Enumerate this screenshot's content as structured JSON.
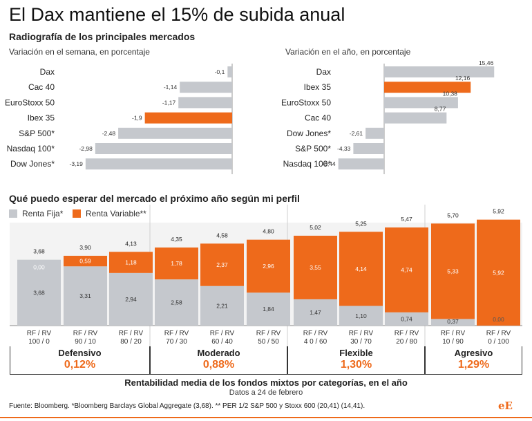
{
  "title": "El Dax mantiene el 15% de subida anual",
  "subtitle": "Radiografía de los principales mercados",
  "colors": {
    "orange": "#ee6a1b",
    "grey": "#c5c8cd",
    "text": "#1a1a1a"
  },
  "chart_data": [
    {
      "type": "bar",
      "orientation": "horizontal",
      "title": "Variación en el semana, en porcentaje",
      "categories": [
        "Dax",
        "Cac 40",
        "EuroStoxx 50",
        "Ibex 35",
        "S&P 500*",
        "Nasdaq 100*",
        "Dow Jones*"
      ],
      "values": [
        -0.1,
        -1.14,
        -1.17,
        -1.9,
        -2.48,
        -2.98,
        -3.19
      ],
      "labels": [
        "-0,1",
        "-1,14",
        "-1,17",
        "-1,9",
        "-2,48",
        "-2,98",
        "-3,19"
      ],
      "highlight": "Ibex 35"
    },
    {
      "type": "bar",
      "orientation": "horizontal",
      "title": "Variación en el año, en porcentaje",
      "categories": [
        "Dax",
        "Ibex 35",
        "EuroStoxx 50",
        "Cac 40",
        "Dow Jones*",
        "S&P 500*",
        "Nasdaq 100*"
      ],
      "values": [
        15.46,
        12.16,
        10.38,
        8.77,
        -2.61,
        -4.33,
        -6.44
      ],
      "labels": [
        "15,46",
        "12,16",
        "10,38",
        "8,77",
        "-2,61",
        "-4,33",
        "-6,44"
      ],
      "highlight": "Ibex 35"
    },
    {
      "type": "bar",
      "stacked": true,
      "title": "Qué puedo esperar del mercado el próximo año según mi perfil",
      "legend": [
        "Renta Fija*",
        "Renta Variable**"
      ],
      "categories": [
        "RF / RV 100 / 0",
        "RF / RV 90 / 10",
        "RF / RV 80 / 20",
        "RF / RV 70 / 30",
        "RF / RV 60 / 40",
        "RF / RV 50 / 50",
        "RF / RV 4 0 / 60",
        "RF / RV 30 / 70",
        "RF / RV 20 / 80",
        "RF / RV 10 / 90",
        "RF / RV 0 / 100"
      ],
      "cat_line1": [
        "RF / RV",
        "RF / RV",
        "RF / RV",
        "RF / RV",
        "RF / RV",
        "RF / RV",
        "RF / RV",
        "RF / RV",
        "RF / RV",
        "RF / RV",
        "RF / RV"
      ],
      "cat_line2": [
        "100 / 0",
        "90 / 10",
        "80 / 20",
        "70 / 30",
        "60 / 40",
        "50 / 50",
        "4 0 / 60",
        "30 / 70",
        "20 / 80",
        "10 / 90",
        "0 / 100"
      ],
      "series": [
        {
          "name": "Renta Fija*",
          "values": [
            3.68,
            3.31,
            2.94,
            2.58,
            2.21,
            1.84,
            1.47,
            1.1,
            0.74,
            0.37,
            0.0
          ],
          "labels": [
            "3,68",
            "3,31",
            "2,94",
            "2,58",
            "2,21",
            "1,84",
            "1,47",
            "1,10",
            "0,74",
            "0,37",
            "0,00"
          ]
        },
        {
          "name": "Renta Variable**",
          "values": [
            0.0,
            0.59,
            1.18,
            1.78,
            2.37,
            2.96,
            3.55,
            4.14,
            4.74,
            5.33,
            5.92
          ],
          "labels": [
            "0,00",
            "0,59",
            "1,18",
            "1,78",
            "2,37",
            "2,96",
            "3,55",
            "4,14",
            "4,74",
            "5,33",
            "5,92"
          ]
        }
      ],
      "totals": [
        3.68,
        3.9,
        4.13,
        4.35,
        4.58,
        4.8,
        5.02,
        5.25,
        5.47,
        5.7,
        5.92
      ],
      "total_labels": [
        "3,68",
        "3,90",
        "4,13",
        "4,35",
        "4,58",
        "4,80",
        "5,02",
        "5,25",
        "5,47",
        "5,70",
        "5,92"
      ],
      "profiles": [
        {
          "name": "Defensivo",
          "return": "0,12%"
        },
        {
          "name": "Moderado",
          "return": "0,88%"
        },
        {
          "name": "Flexible",
          "return": "1,30%"
        },
        {
          "name": "Agresivo",
          "return": "1,29%"
        }
      ]
    }
  ],
  "footer": {
    "caption": "Rentabilidad media de los fondos mixtos por categorías, en el año",
    "date": "Datos a 24 de febrero",
    "source": "Fuente: Bloomberg. *Bloomberg Barclays Global Aggregate (3,68). ** PER 1/2 S&P 500 y Stoxx 600 (20,41) (14,41).",
    "logo": "eE"
  }
}
